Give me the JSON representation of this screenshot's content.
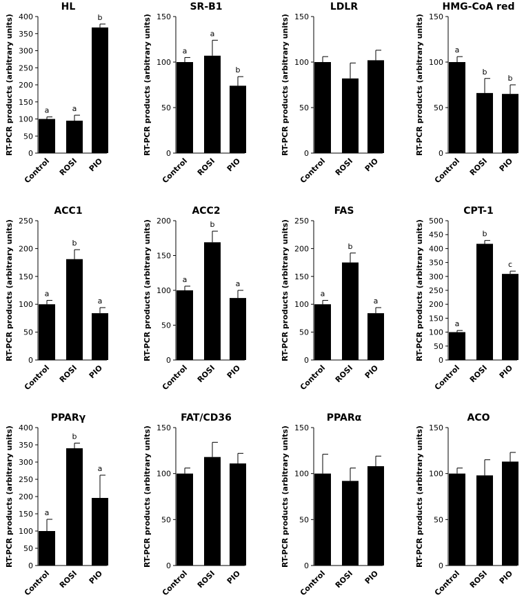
{
  "ylabel": "RT-PCR products (arbitrary units)",
  "categories": [
    "Control",
    "ROSI",
    "PIO"
  ],
  "chart_data": [
    {
      "type": "bar",
      "title": "HL",
      "categories": [
        "Control",
        "ROSI",
        "PIO"
      ],
      "values": [
        100,
        95,
        368
      ],
      "errors": [
        6,
        16,
        10
      ],
      "labels": [
        "a",
        "a",
        "b"
      ],
      "ylim": [
        0,
        400
      ],
      "ticks": [
        0,
        50,
        100,
        150,
        200,
        250,
        300,
        350,
        400
      ],
      "ylabel": "RT-PCR products (arbitrary units)",
      "grid": false
    },
    {
      "type": "bar",
      "title": "SR-B1",
      "categories": [
        "Control",
        "ROSI",
        "PIO"
      ],
      "values": [
        100,
        107,
        74
      ],
      "errors": [
        5,
        17,
        10
      ],
      "labels": [
        "a",
        "a",
        "b"
      ],
      "ylim": [
        0,
        150
      ],
      "ticks": [
        0,
        50,
        100,
        150
      ],
      "ylabel": "RT-PCR products (arbitrary units)",
      "grid": false
    },
    {
      "type": "bar",
      "title": "LDLR",
      "categories": [
        "Control",
        "ROSI",
        "PIO"
      ],
      "values": [
        100,
        82,
        102
      ],
      "errors": [
        6,
        17,
        11
      ],
      "labels": [
        "",
        "",
        ""
      ],
      "ylim": [
        0,
        150
      ],
      "ticks": [
        0,
        50,
        100,
        150
      ],
      "ylabel": "RT-PCR products (arbitrary units)",
      "grid": false
    },
    {
      "type": "bar",
      "title": "HMG-CoA red",
      "categories": [
        "Control",
        "ROSI",
        "PIO"
      ],
      "values": [
        100,
        66,
        65
      ],
      "errors": [
        6,
        16,
        10
      ],
      "labels": [
        "a",
        "b",
        "b"
      ],
      "ylim": [
        0,
        150
      ],
      "ticks": [
        0,
        50,
        100,
        150
      ],
      "ylabel": "RT-PCR products (arbitrary units)",
      "grid": false
    },
    {
      "type": "bar",
      "title": "ACC1",
      "categories": [
        "Control",
        "ROSI",
        "PIO"
      ],
      "values": [
        100,
        181,
        84
      ],
      "errors": [
        7,
        17,
        10
      ],
      "labels": [
        "a",
        "b",
        "a"
      ],
      "ylim": [
        0,
        250
      ],
      "ticks": [
        0,
        50,
        100,
        150,
        200,
        250
      ],
      "ylabel": "RT-PCR products (arbitrary units)",
      "grid": false
    },
    {
      "type": "bar",
      "title": "ACC2",
      "categories": [
        "Control",
        "ROSI",
        "PIO"
      ],
      "values": [
        100,
        169,
        89
      ],
      "errors": [
        6,
        16,
        11
      ],
      "labels": [
        "a",
        "b",
        "a"
      ],
      "ylim": [
        0,
        200
      ],
      "ticks": [
        0,
        50,
        100,
        150,
        200
      ],
      "ylabel": "RT-PCR products (arbitrary units)",
      "grid": false
    },
    {
      "type": "bar",
      "title": "FAS",
      "categories": [
        "Control",
        "ROSI",
        "PIO"
      ],
      "values": [
        100,
        175,
        84
      ],
      "errors": [
        7,
        17,
        10
      ],
      "labels": [
        "a",
        "b",
        "a"
      ],
      "ylim": [
        0,
        250
      ],
      "ticks": [
        0,
        50,
        100,
        150,
        200,
        250
      ],
      "ylabel": "RT-PCR products (arbitrary units)",
      "grid": false
    },
    {
      "type": "bar",
      "title": "CPT-1",
      "categories": [
        "Control",
        "ROSI",
        "PIO"
      ],
      "values": [
        100,
        417,
        309
      ],
      "errors": [
        6,
        12,
        10
      ],
      "labels": [
        "a",
        "b",
        "c"
      ],
      "ylim": [
        0,
        500
      ],
      "ticks": [
        0,
        50,
        100,
        150,
        200,
        250,
        300,
        350,
        400,
        450,
        500
      ],
      "ylabel": "RT-PCR products (arbitrary units)",
      "grid": false
    },
    {
      "type": "bar",
      "title": "PPARγ",
      "categories": [
        "Control",
        "ROSI",
        "PIO"
      ],
      "values": [
        100,
        340,
        196
      ],
      "errors": [
        34,
        15,
        66
      ],
      "labels": [
        "a",
        "b",
        "a"
      ],
      "ylim": [
        0,
        400
      ],
      "ticks": [
        0,
        50,
        100,
        150,
        200,
        250,
        300,
        350,
        400
      ],
      "ylabel": "RT-PCR products (arbitrary units)",
      "grid": false
    },
    {
      "type": "bar",
      "title": "FAT/CD36",
      "categories": [
        "Control",
        "ROSI",
        "PIO"
      ],
      "values": [
        100,
        118,
        111
      ],
      "errors": [
        6,
        16,
        11
      ],
      "labels": [
        "",
        "",
        ""
      ],
      "ylim": [
        0,
        150
      ],
      "ticks": [
        0,
        50,
        100,
        150
      ],
      "ylabel": "RT-PCR products (arbitrary units)",
      "grid": false
    },
    {
      "type": "bar",
      "title": "PPARα",
      "categories": [
        "Control",
        "ROSI",
        "PIO"
      ],
      "values": [
        100,
        92,
        108
      ],
      "errors": [
        21,
        14,
        11
      ],
      "labels": [
        "",
        "",
        ""
      ],
      "ylim": [
        0,
        150
      ],
      "ticks": [
        0,
        50,
        100,
        150
      ],
      "ylabel": "RT-PCR products (arbitrary units)",
      "grid": false
    },
    {
      "type": "bar",
      "title": "ACO",
      "categories": [
        "Control",
        "ROSI",
        "PIO"
      ],
      "values": [
        100,
        98,
        113
      ],
      "errors": [
        6,
        17,
        10
      ],
      "labels": [
        "",
        "",
        ""
      ],
      "ylim": [
        0,
        150
      ],
      "ticks": [
        0,
        50,
        100,
        150
      ],
      "ylabel": "RT-PCR products (arbitrary units)",
      "grid": false
    }
  ]
}
